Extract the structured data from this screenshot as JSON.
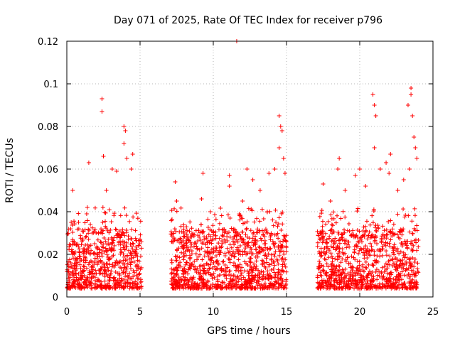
{
  "chart_data": {
    "type": "scatter",
    "title": "Day 071 of 2025, Rate Of TEC Index for receiver p796",
    "xlabel": "GPS time / hours",
    "ylabel": "ROTI / TECUs",
    "xlim": [
      0,
      25
    ],
    "ylim": [
      0,
      0.12
    ],
    "x_ticks": [
      0,
      5,
      10,
      15,
      20,
      25
    ],
    "y_ticks": [
      0,
      0.02,
      0.04,
      0.06,
      0.08,
      0.1,
      0.12
    ],
    "x_tick_labels": [
      "0",
      "5",
      "10",
      "15",
      "20",
      "25"
    ],
    "y_tick_labels": [
      "0",
      "0.02",
      "0.04",
      "0.06",
      "0.08",
      "0.1",
      "0.12"
    ],
    "grid": true,
    "marker": "+",
    "color": "#ff0000",
    "series": [
      {
        "name": "ROTI",
        "segments": [
          [
            0.0,
            5.1
          ],
          [
            7.1,
            15.0
          ],
          [
            17.1,
            24.0
          ]
        ],
        "highlight_points": [
          {
            "x": 0.3,
            "y": 0.035
          },
          {
            "x": 0.4,
            "y": 0.05
          },
          {
            "x": 0.8,
            "y": 0.035
          },
          {
            "x": 1.4,
            "y": 0.042
          },
          {
            "x": 1.5,
            "y": 0.063
          },
          {
            "x": 2.0,
            "y": 0.03
          },
          {
            "x": 2.4,
            "y": 0.093
          },
          {
            "x": 2.4,
            "y": 0.087
          },
          {
            "x": 2.5,
            "y": 0.066
          },
          {
            "x": 2.7,
            "y": 0.05
          },
          {
            "x": 3.1,
            "y": 0.06
          },
          {
            "x": 3.4,
            "y": 0.059
          },
          {
            "x": 3.9,
            "y": 0.08
          },
          {
            "x": 4.0,
            "y": 0.078
          },
          {
            "x": 3.9,
            "y": 0.072
          },
          {
            "x": 4.1,
            "y": 0.065
          },
          {
            "x": 4.5,
            "y": 0.067
          },
          {
            "x": 4.4,
            "y": 0.06
          },
          {
            "x": 7.4,
            "y": 0.054
          },
          {
            "x": 7.5,
            "y": 0.045
          },
          {
            "x": 8.0,
            "y": 0.03
          },
          {
            "x": 9.3,
            "y": 0.058
          },
          {
            "x": 9.2,
            "y": 0.046
          },
          {
            "x": 9.8,
            "y": 0.04
          },
          {
            "x": 11.1,
            "y": 0.057
          },
          {
            "x": 11.1,
            "y": 0.052
          },
          {
            "x": 11.6,
            "y": 0.12
          },
          {
            "x": 12.0,
            "y": 0.045
          },
          {
            "x": 12.3,
            "y": 0.06
          },
          {
            "x": 12.7,
            "y": 0.055
          },
          {
            "x": 13.2,
            "y": 0.05
          },
          {
            "x": 13.8,
            "y": 0.058
          },
          {
            "x": 14.2,
            "y": 0.06
          },
          {
            "x": 14.5,
            "y": 0.085
          },
          {
            "x": 14.6,
            "y": 0.08
          },
          {
            "x": 14.7,
            "y": 0.078
          },
          {
            "x": 14.8,
            "y": 0.065
          },
          {
            "x": 14.9,
            "y": 0.058
          },
          {
            "x": 14.5,
            "y": 0.07
          },
          {
            "x": 17.5,
            "y": 0.053
          },
          {
            "x": 18.0,
            "y": 0.045
          },
          {
            "x": 18.6,
            "y": 0.065
          },
          {
            "x": 18.5,
            "y": 0.06
          },
          {
            "x": 19.0,
            "y": 0.05
          },
          {
            "x": 19.7,
            "y": 0.057
          },
          {
            "x": 20.0,
            "y": 0.06
          },
          {
            "x": 20.4,
            "y": 0.052
          },
          {
            "x": 20.9,
            "y": 0.095
          },
          {
            "x": 21.0,
            "y": 0.09
          },
          {
            "x": 21.1,
            "y": 0.085
          },
          {
            "x": 21.0,
            "y": 0.07
          },
          {
            "x": 21.4,
            "y": 0.06
          },
          {
            "x": 21.8,
            "y": 0.063
          },
          {
            "x": 22.1,
            "y": 0.067
          },
          {
            "x": 22.0,
            "y": 0.058
          },
          {
            "x": 22.6,
            "y": 0.05
          },
          {
            "x": 23.0,
            "y": 0.055
          },
          {
            "x": 23.3,
            "y": 0.09
          },
          {
            "x": 23.5,
            "y": 0.098
          },
          {
            "x": 23.5,
            "y": 0.095
          },
          {
            "x": 23.6,
            "y": 0.085
          },
          {
            "x": 23.7,
            "y": 0.075
          },
          {
            "x": 23.8,
            "y": 0.07
          },
          {
            "x": 23.9,
            "y": 0.065
          },
          {
            "x": 23.4,
            "y": 0.06
          }
        ]
      }
    ]
  }
}
